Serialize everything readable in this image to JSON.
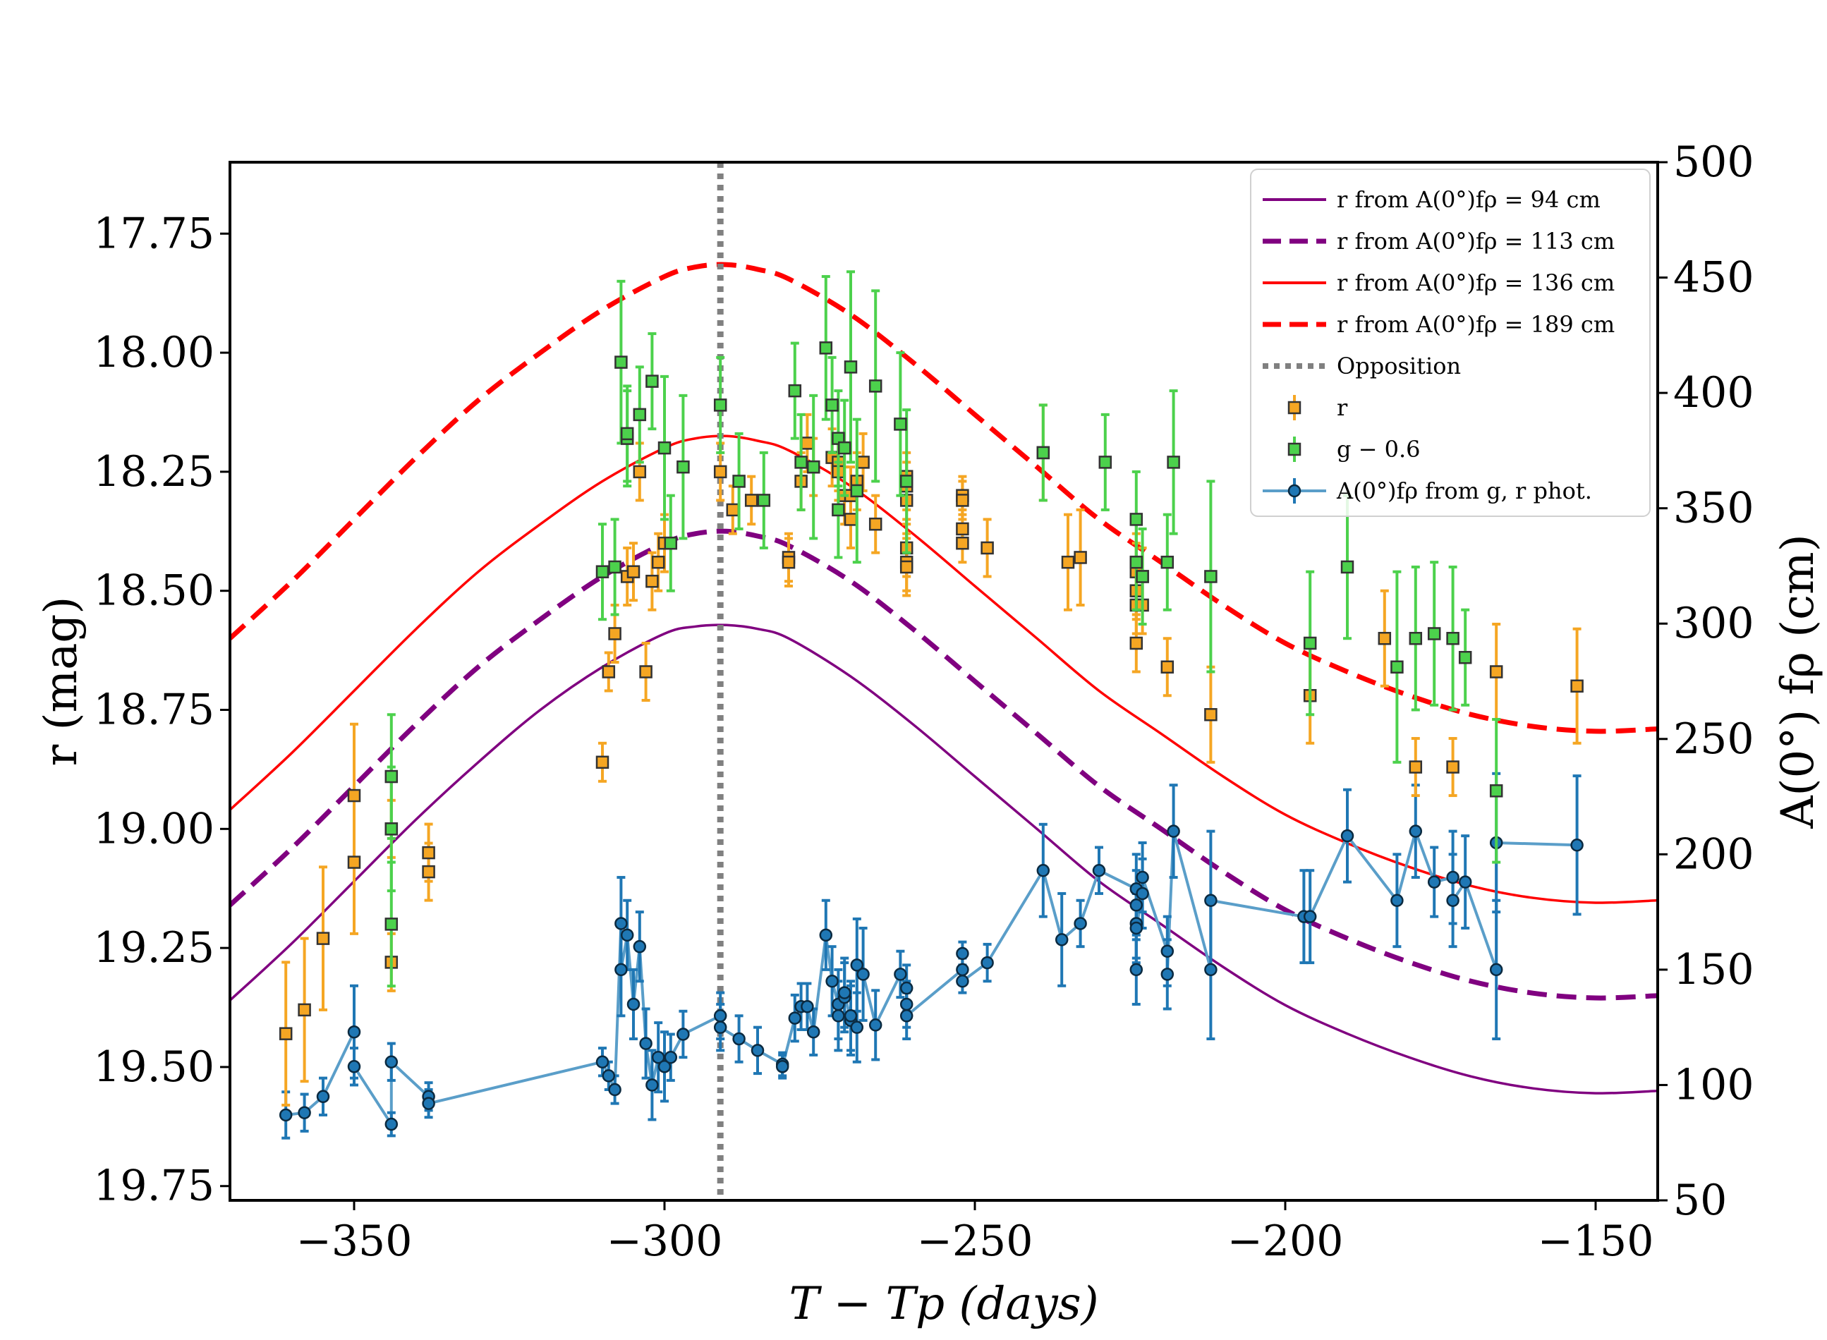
{
  "chart_data": {
    "type": "line",
    "xlabel": "T − Tp (days)",
    "ylabel_left": "r (mag)",
    "ylabel_right": "A(0°) fρ (cm)",
    "xlim": [
      -370,
      -140
    ],
    "ylim_left_top": 17.6,
    "ylim_left_bottom": 19.78,
    "ylim_right": [
      50,
      500
    ],
    "xticks": [
      -350,
      -300,
      -250,
      -200,
      -150
    ],
    "xtick_labels": [
      "−350",
      "−300",
      "−250",
      "−200",
      "−150"
    ],
    "yticks_left": [
      17.75,
      18.0,
      18.25,
      18.5,
      18.75,
      19.0,
      19.25,
      19.5,
      19.75
    ],
    "ytick_labels_left": [
      "17.75",
      "18.00",
      "18.25",
      "18.50",
      "18.75",
      "19.00",
      "19.25",
      "19.50",
      "19.75"
    ],
    "yticks_right": [
      50,
      100,
      150,
      200,
      250,
      300,
      350,
      400,
      450,
      500
    ],
    "ytick_labels_right": [
      "50",
      "100",
      "150",
      "200",
      "250",
      "300",
      "350",
      "400",
      "450",
      "500"
    ],
    "opposition_x": -291,
    "model_curves": [
      {
        "name": "r from A(0°)fρ = 94 cm",
        "color": "#800080",
        "dash": "solid",
        "width": 3.5,
        "x": [
          -370,
          -360,
          -350,
          -340,
          -330,
          -320,
          -310,
          -300,
          -295,
          -290,
          -285,
          -280,
          -270,
          -260,
          -250,
          -240,
          -230,
          -220,
          -210,
          -200,
          -190,
          -180,
          -170,
          -160,
          -150,
          -140
        ],
        "y": [
          19.36,
          19.24,
          19.11,
          18.98,
          18.86,
          18.75,
          18.66,
          18.59,
          18.575,
          18.572,
          18.58,
          18.6,
          18.68,
          18.78,
          18.89,
          19.0,
          19.11,
          19.2,
          19.29,
          19.37,
          19.43,
          19.48,
          19.52,
          19.545,
          19.555,
          19.55
        ]
      },
      {
        "name": "r from A(0°)fρ = 113 cm",
        "color": "#800080",
        "dash": "dashed",
        "width": 7,
        "x": [
          -370,
          -360,
          -350,
          -340,
          -330,
          -320,
          -310,
          -300,
          -295,
          -290,
          -285,
          -280,
          -270,
          -260,
          -250,
          -240,
          -230,
          -220,
          -210,
          -200,
          -190,
          -180,
          -170,
          -160,
          -150,
          -140
        ],
        "y": [
          19.16,
          19.04,
          18.91,
          18.78,
          18.66,
          18.56,
          18.47,
          18.4,
          18.38,
          18.375,
          18.385,
          18.405,
          18.48,
          18.58,
          18.69,
          18.8,
          18.91,
          19.0,
          19.09,
          19.17,
          19.23,
          19.28,
          19.32,
          19.345,
          19.355,
          19.35
        ]
      },
      {
        "name": "r from A(0°)fρ = 136 cm",
        "color": "#ff0000",
        "dash": "solid",
        "width": 3.5,
        "x": [
          -370,
          -360,
          -350,
          -340,
          -330,
          -320,
          -310,
          -300,
          -295,
          -290,
          -285,
          -280,
          -270,
          -260,
          -250,
          -240,
          -230,
          -220,
          -210,
          -200,
          -190,
          -180,
          -170,
          -160,
          -150,
          -140
        ],
        "y": [
          18.96,
          18.84,
          18.71,
          18.58,
          18.46,
          18.36,
          18.27,
          18.2,
          18.18,
          18.175,
          18.185,
          18.205,
          18.28,
          18.38,
          18.49,
          18.6,
          18.71,
          18.8,
          18.89,
          18.97,
          19.03,
          19.08,
          19.12,
          19.145,
          19.155,
          19.15
        ]
      },
      {
        "name": "r from A(0°)fρ = 189 cm",
        "color": "#ff0000",
        "dash": "dashed",
        "width": 7,
        "x": [
          -370,
          -360,
          -350,
          -340,
          -330,
          -320,
          -310,
          -300,
          -295,
          -290,
          -285,
          -280,
          -270,
          -260,
          -250,
          -240,
          -230,
          -220,
          -210,
          -200,
          -190,
          -180,
          -170,
          -160,
          -150,
          -140
        ],
        "y": [
          18.6,
          18.48,
          18.35,
          18.22,
          18.1,
          18.0,
          17.91,
          17.84,
          17.82,
          17.815,
          17.825,
          17.845,
          17.92,
          18.02,
          18.13,
          18.24,
          18.35,
          18.44,
          18.53,
          18.61,
          18.67,
          18.72,
          18.76,
          18.785,
          18.795,
          18.79
        ]
      }
    ],
    "r_points": {
      "name": "r",
      "color": "#f5a623",
      "marker": "square",
      "axis": "left",
      "x": [
        -361,
        -358,
        -355,
        -350,
        -350,
        -344,
        -344,
        -338,
        -338,
        -310,
        -309,
        -308,
        -306,
        -305,
        -304,
        -303,
        -302,
        -301,
        -300,
        -291,
        -289,
        -286,
        -280,
        -280,
        -278,
        -277,
        -276,
        -273,
        -272,
        -272,
        -271,
        -270,
        -270,
        -269,
        -268,
        -266,
        -261,
        -261,
        -261,
        -261,
        -261,
        -261,
        -252,
        -252,
        -252,
        -252,
        -248,
        -239,
        -235,
        -233,
        -224,
        -224,
        -224,
        -224,
        -224,
        -223,
        -223,
        -219,
        -212,
        -196,
        -184,
        -179,
        -173,
        -166,
        -153
      ],
      "y": [
        19.43,
        19.38,
        19.23,
        18.93,
        19.07,
        19.0,
        19.28,
        19.05,
        19.09,
        18.86,
        18.67,
        18.59,
        18.47,
        18.46,
        18.25,
        18.67,
        18.48,
        18.44,
        18.4,
        18.25,
        18.33,
        18.31,
        18.43,
        18.44,
        18.27,
        18.19,
        18.24,
        18.22,
        18.23,
        18.25,
        18.3,
        18.35,
        18.3,
        18.27,
        18.23,
        18.36,
        18.31,
        18.26,
        18.28,
        18.41,
        18.44,
        18.45,
        18.3,
        18.37,
        18.4,
        18.31,
        18.41,
        18.21,
        18.44,
        18.43,
        18.44,
        18.46,
        18.53,
        18.61,
        18.5,
        18.53,
        18.47,
        18.66,
        18.76,
        18.72,
        18.6,
        18.87,
        18.87,
        18.67,
        18.7
      ],
      "err": [
        0.15,
        0.15,
        0.15,
        0.15,
        0.15,
        0.06,
        0.06,
        0.06,
        0.06,
        0.04,
        0.04,
        0.06,
        0.06,
        0.06,
        0.06,
        0.06,
        0.06,
        0.06,
        0.06,
        0.06,
        0.05,
        0.05,
        0.05,
        0.05,
        0.06,
        0.06,
        0.06,
        0.06,
        0.06,
        0.06,
        0.06,
        0.06,
        0.06,
        0.06,
        0.06,
        0.06,
        0.05,
        0.05,
        0.05,
        0.06,
        0.06,
        0.06,
        0.04,
        0.04,
        0.04,
        0.04,
        0.06,
        0.1,
        0.1,
        0.1,
        0.06,
        0.06,
        0.06,
        0.06,
        0.06,
        0.06,
        0.06,
        0.06,
        0.1,
        0.1,
        0.1,
        0.06,
        0.06,
        0.1,
        0.12
      ]
    },
    "g_points": {
      "name": "g − 0.6",
      "color": "#4cd14c",
      "marker": "square",
      "axis": "left",
      "x": [
        -344,
        -344,
        -344,
        -310,
        -308,
        -307,
        -306,
        -306,
        -304,
        -302,
        -300,
        -299,
        -297,
        -291,
        -288,
        -284,
        -279,
        -278,
        -276,
        -274,
        -273,
        -272,
        -272,
        -271,
        -270,
        -269,
        -266,
        -262,
        -261,
        -239,
        -229,
        -224,
        -224,
        -223,
        -219,
        -218,
        -212,
        -196,
        -190,
        -182,
        -179,
        -176,
        -173,
        -171,
        -166
      ],
      "y": [
        18.89,
        19.0,
        19.2,
        18.46,
        18.45,
        18.02,
        18.18,
        18.17,
        18.13,
        18.06,
        18.2,
        18.4,
        18.24,
        18.11,
        18.27,
        18.31,
        18.08,
        18.23,
        18.24,
        17.99,
        18.11,
        18.33,
        18.18,
        18.2,
        18.03,
        18.29,
        18.07,
        18.15,
        18.27,
        18.21,
        18.23,
        18.35,
        18.44,
        18.47,
        18.44,
        18.23,
        18.47,
        18.61,
        18.45,
        18.66,
        18.6,
        18.59,
        18.6,
        18.64,
        18.92
      ],
      "err": [
        0.13,
        0.13,
        0.13,
        0.1,
        0.1,
        0.17,
        0.1,
        0.1,
        0.1,
        0.1,
        0.15,
        0.1,
        0.15,
        0.1,
        0.1,
        0.1,
        0.1,
        0.1,
        0.15,
        0.15,
        0.1,
        0.1,
        0.1,
        0.1,
        0.2,
        0.15,
        0.2,
        0.15,
        0.15,
        0.1,
        0.1,
        0.1,
        0.1,
        0.1,
        0.1,
        0.15,
        0.2,
        0.15,
        0.15,
        0.2,
        0.15,
        0.15,
        0.15,
        0.1,
        0.15
      ]
    },
    "afrho_points": {
      "name": "A(0°)fρ from g, r phot.",
      "color": "#1f77b4",
      "line_color": "#5a9ec9",
      "marker": "circle",
      "axis": "right",
      "x": [
        -361,
        -358,
        -355,
        -350,
        -350,
        -344,
        -344,
        -338,
        -338,
        -310,
        -309,
        -308,
        -307,
        -307,
        -306,
        -305,
        -304,
        -303,
        -302,
        -301,
        -300,
        -299,
        -297,
        -291,
        -291,
        -288,
        -285,
        -281,
        -281,
        -279,
        -278,
        -277,
        -276,
        -274,
        -273,
        -272,
        -272,
        -271,
        -271,
        -270,
        -270,
        -269,
        -269,
        -268,
        -266,
        -262,
        -261,
        -261,
        -261,
        -252,
        -252,
        -252,
        -248,
        -239,
        -236,
        -233,
        -230,
        -224,
        -224,
        -224,
        -224,
        -224,
        -223,
        -223,
        -219,
        -219,
        -218,
        -212,
        -212,
        -197,
        -196,
        -190,
        -182,
        -179,
        -176,
        -173,
        -173,
        -171,
        -166,
        -166,
        -153
      ],
      "y": [
        87,
        88,
        95,
        123,
        108,
        83,
        110,
        95,
        92,
        110,
        104,
        98,
        170,
        150,
        165,
        135,
        160,
        118,
        100,
        112,
        108,
        112,
        122,
        130,
        125,
        120,
        115,
        109,
        108,
        129,
        134,
        134,
        123,
        165,
        145,
        135,
        130,
        138,
        140,
        128,
        130,
        125,
        152,
        148,
        126,
        148,
        142,
        135,
        130,
        150,
        157,
        145,
        153,
        193,
        163,
        170,
        193,
        185,
        178,
        150,
        170,
        168,
        183,
        190,
        158,
        148,
        210,
        150,
        180,
        173,
        173,
        208,
        180,
        210,
        188,
        190,
        180,
        188,
        150,
        205,
        204
      ],
      "err": [
        10,
        8,
        8,
        20,
        8,
        5,
        8,
        6,
        6,
        6,
        6,
        6,
        20,
        20,
        15,
        15,
        15,
        15,
        15,
        15,
        15,
        10,
        10,
        10,
        10,
        10,
        10,
        5,
        5,
        10,
        10,
        10,
        10,
        15,
        15,
        15,
        15,
        15,
        15,
        15,
        15,
        15,
        20,
        20,
        15,
        10,
        10,
        10,
        10,
        5,
        5,
        5,
        8,
        20,
        20,
        10,
        10,
        15,
        15,
        15,
        15,
        15,
        15,
        15,
        15,
        15,
        20,
        30,
        30,
        20,
        20,
        20,
        20,
        20,
        15,
        20,
        20,
        20,
        30,
        30,
        30
      ]
    },
    "legend": {
      "placement": "top-right",
      "entries": [
        {
          "kind": "solid-line",
          "color": "#800080",
          "label": "r from A(0°)fρ = 94 cm"
        },
        {
          "kind": "dashed-line",
          "color": "#800080",
          "label": "r from A(0°)fρ = 113 cm"
        },
        {
          "kind": "solid-line",
          "color": "#ff0000",
          "label": "r from A(0°)fρ = 136 cm"
        },
        {
          "kind": "dashed-line",
          "color": "#ff0000",
          "label": "r from A(0°)fρ = 189 cm"
        },
        {
          "kind": "dotted-line",
          "color": "#808080",
          "label": "Opposition"
        },
        {
          "kind": "square",
          "color": "#f5a623",
          "label": "r"
        },
        {
          "kind": "square",
          "color": "#4cd14c",
          "label": "g − 0.6"
        },
        {
          "kind": "circle-line",
          "color": "#1f77b4",
          "label": "A(0°)fρ from g, r phot."
        }
      ]
    }
  }
}
